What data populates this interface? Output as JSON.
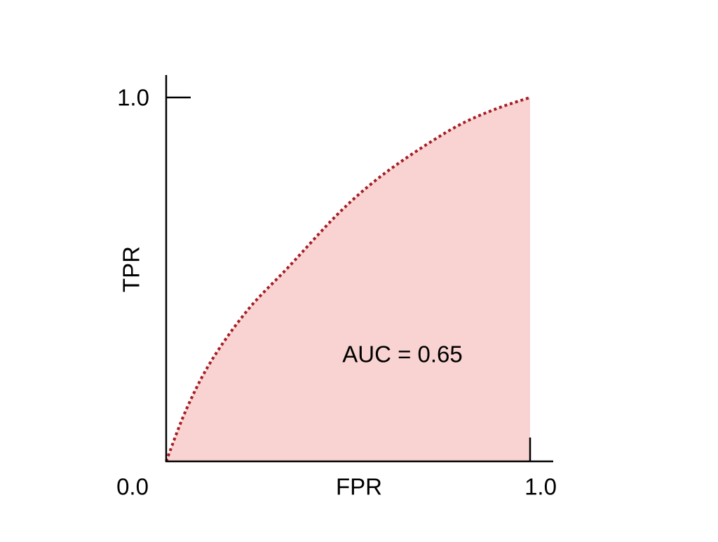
{
  "chart_data": {
    "type": "area",
    "xlabel": "FPR",
    "ylabel": "TPR",
    "xlim": [
      0,
      1
    ],
    "ylim": [
      0,
      1
    ],
    "x_tick_labels": [
      "0.0",
      "1.0"
    ],
    "y_tick_labels": [
      "1.0"
    ],
    "annotation": "AUC = 0.65",
    "grid": false,
    "series": [
      {
        "x": [
          0,
          0.055,
          0.124,
          0.224,
          0.337,
          0.468,
          0.569,
          0.675,
          0.799,
          0.902,
          1.0
        ],
        "y": [
          0,
          0.142,
          0.276,
          0.416,
          0.535,
          0.676,
          0.767,
          0.844,
          0.921,
          0.967,
          1.0
        ]
      }
    ],
    "colors": {
      "line": "#a61d24",
      "fill": "#f8d3d1",
      "axis": "#000000"
    }
  }
}
